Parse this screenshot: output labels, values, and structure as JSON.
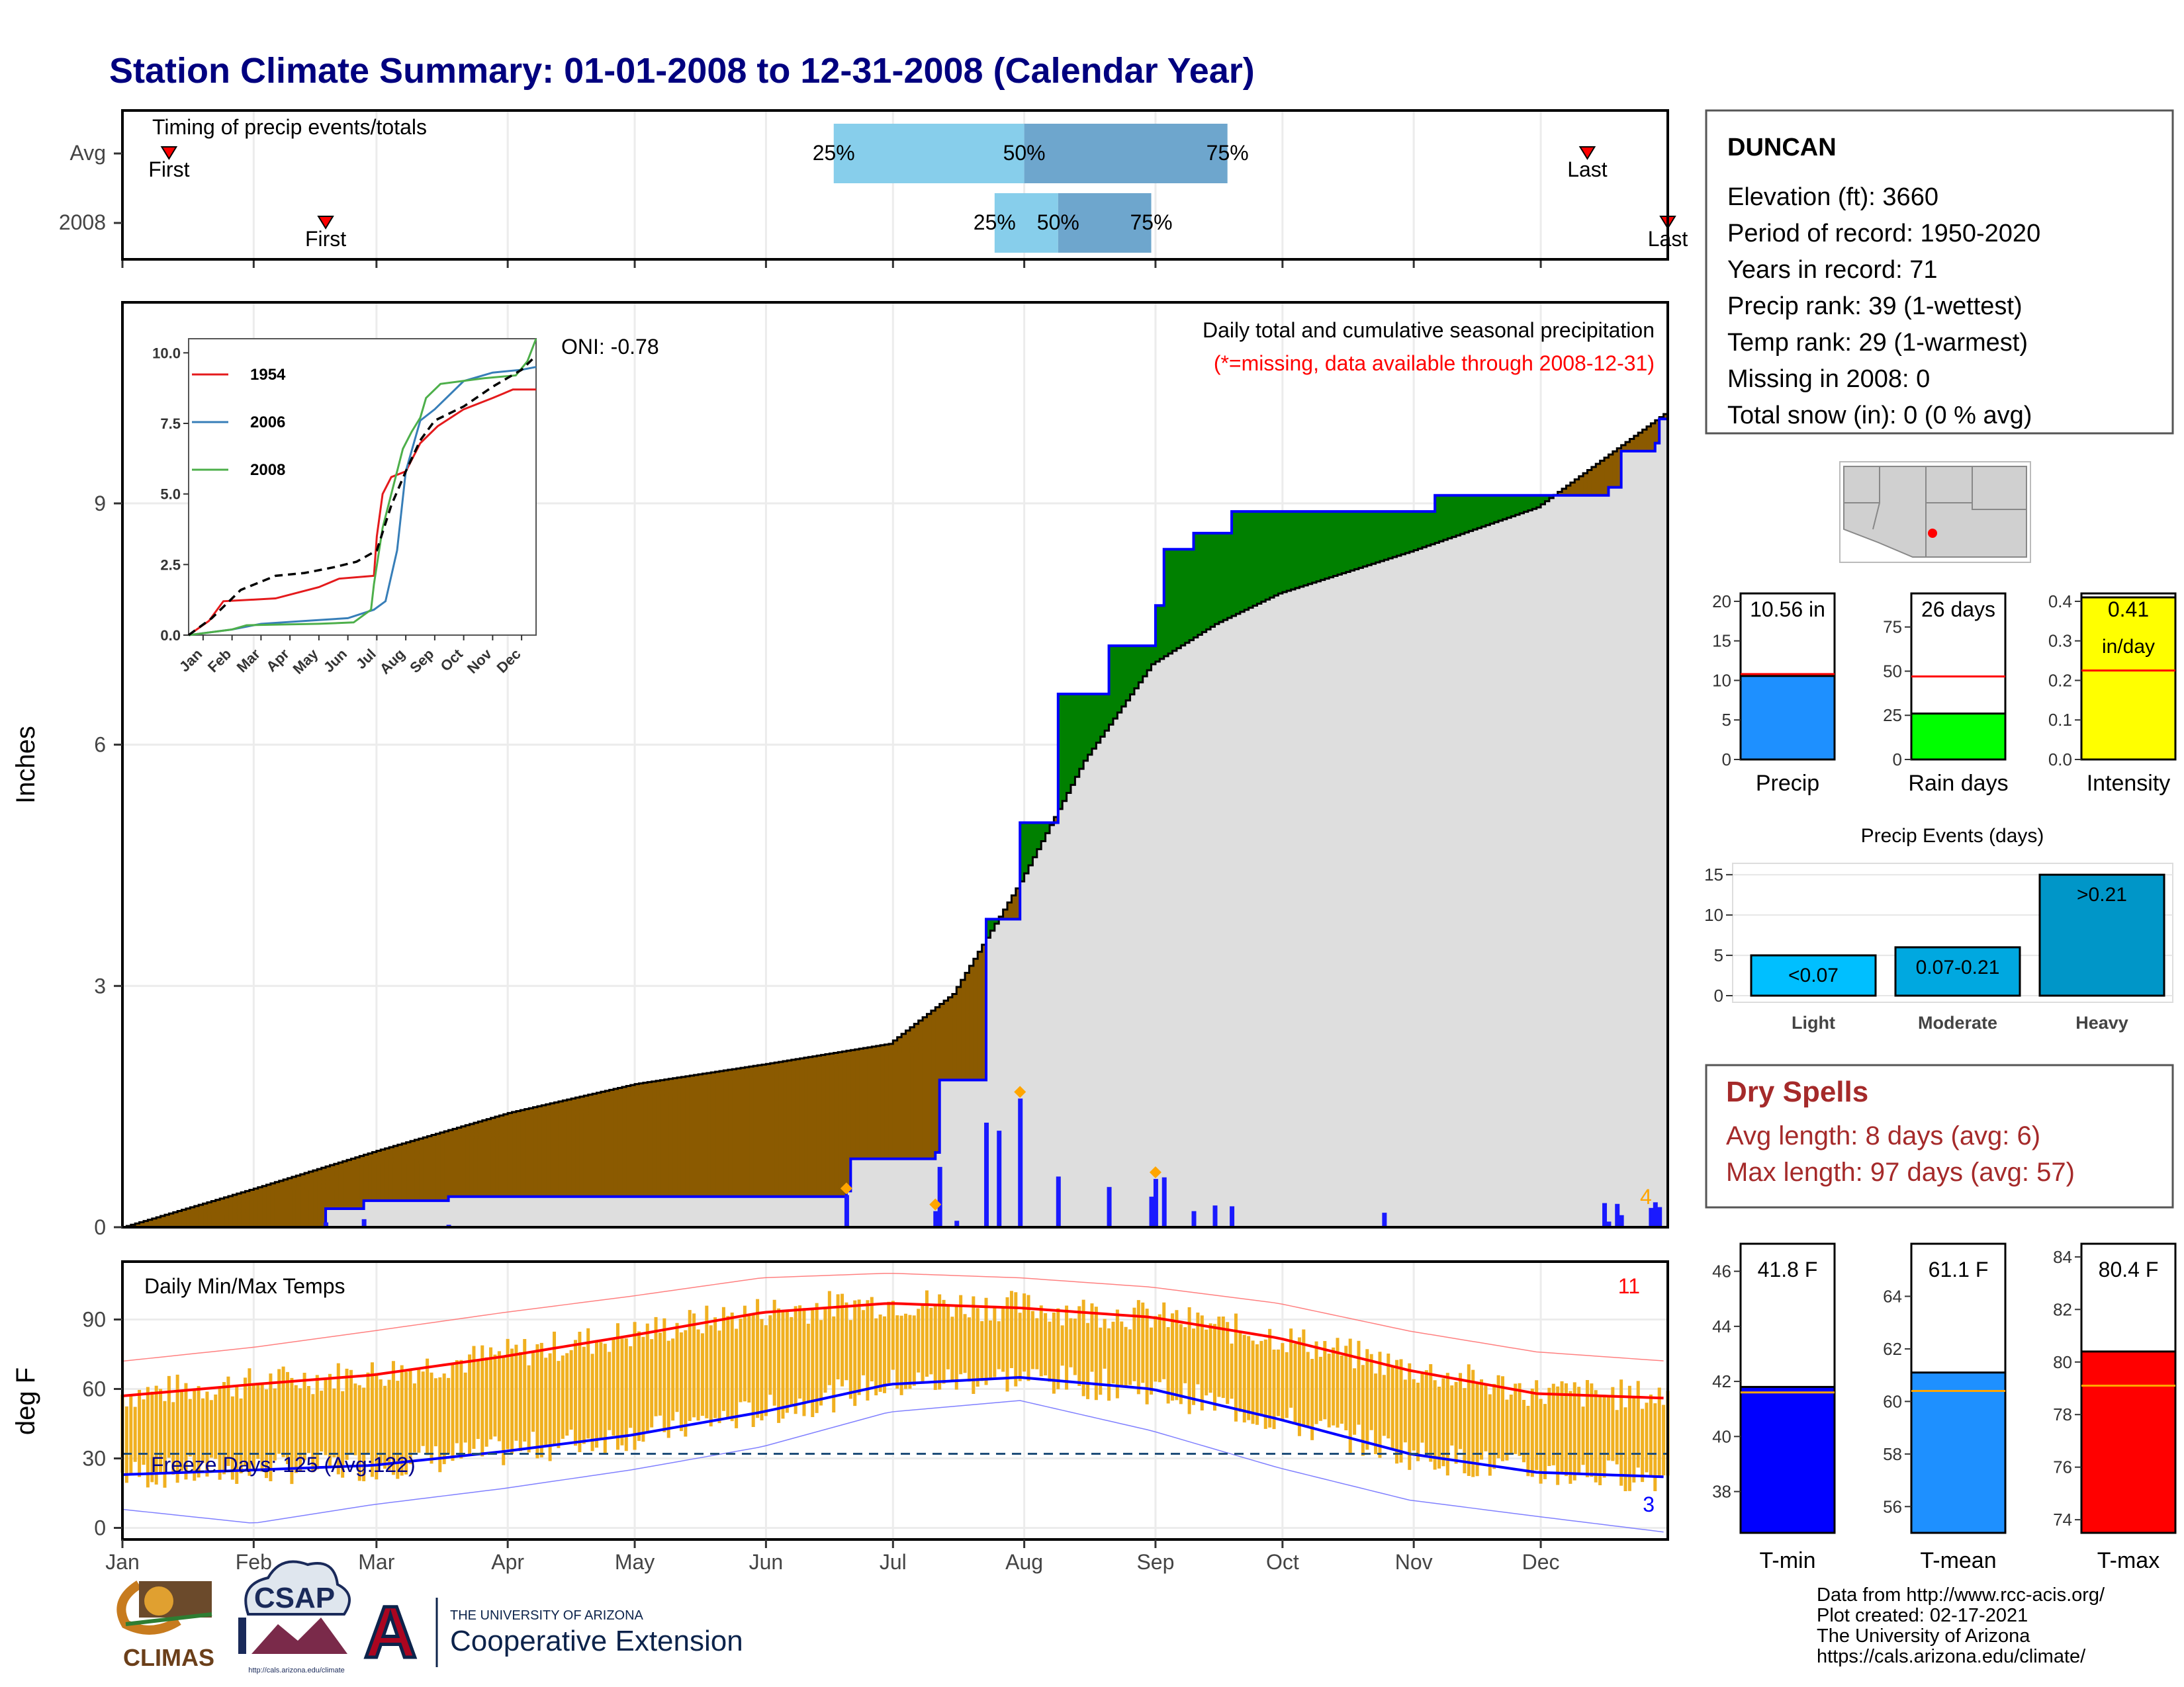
{
  "title": "Station Climate Summary: 01-01-2008 to 12-31-2008 (Calendar Year)",
  "colors": {
    "title": "#00007f",
    "brown": "#8b5a00",
    "green": "#008000",
    "blue": "#0000ff",
    "bars": "#1a1aff",
    "gray": "#dedede",
    "temp_fill": "#f0b020",
    "tmax": "#ff0000",
    "tmin": "#0000ff",
    "light_blue": "#87ceeb",
    "mid_blue": "#6ea6cd",
    "dry": "#a52a2a",
    "precip_bar": "#1e90ff",
    "rain_bar": "#00ff00",
    "intensity_bar": "#ffff00",
    "events_bar": "#0096c8"
  },
  "timing": {
    "label": "Timing of precip events/totals",
    "rows": [
      "Avg",
      "2008"
    ],
    "first_label": "First",
    "last_label": "Last",
    "q25": "25%",
    "q50": "50%",
    "q75": "75%",
    "avg": {
      "first": "01-12",
      "q25": "06-17",
      "q50": "08-01",
      "q75": "09-18",
      "last": "12-12"
    },
    "y2008": {
      "first": "02-18",
      "q25": "07-25",
      "q50": "08-09",
      "q75": "08-31",
      "last": "12-31"
    }
  },
  "precip_panel": {
    "ylabel": "Inches",
    "yticks": [
      0,
      3,
      6,
      9
    ],
    "subtitle": "Daily total and cumulative seasonal precipitation",
    "missing_note": "(*=missing, data available through 2008-12-31)",
    "missing_count": "4",
    "oni": "ONI: -0.78",
    "chart_data": {
      "type": "area",
      "ylim": [
        0,
        11.5
      ],
      "cumulative_2008": [
        [
          "01-01",
          0
        ],
        [
          "02-18",
          0.23
        ],
        [
          "02-27",
          0.33
        ],
        [
          "03-18",
          0.38
        ],
        [
          "06-20",
          0.45
        ],
        [
          "06-21",
          0.85
        ],
        [
          "07-11",
          0.93
        ],
        [
          "07-12",
          1.83
        ],
        [
          "07-22",
          1.83
        ],
        [
          "07-23",
          3.83
        ],
        [
          "07-30",
          3.83
        ],
        [
          "07-31",
          5.03
        ],
        [
          "08-08",
          5.03
        ],
        [
          "08-09",
          6.63
        ],
        [
          "08-20",
          6.63
        ],
        [
          "08-21",
          7.23
        ],
        [
          "08-31",
          7.23
        ],
        [
          "09-01",
          7.73
        ],
        [
          "09-02",
          7.73
        ],
        [
          "09-03",
          8.43
        ],
        [
          "09-09",
          8.43
        ],
        [
          "09-10",
          8.63
        ],
        [
          "09-18",
          8.63
        ],
        [
          "09-19",
          8.9
        ],
        [
          "11-05",
          8.9
        ],
        [
          "11-06",
          9.1
        ],
        [
          "12-16",
          9.1
        ],
        [
          "12-17",
          9.2
        ],
        [
          "12-19",
          9.2
        ],
        [
          "12-20",
          9.65
        ],
        [
          "12-27",
          9.65
        ],
        [
          "12-28",
          9.75
        ],
        [
          "12-29",
          10.05
        ],
        [
          "12-31",
          10.55
        ]
      ],
      "average_cumulative": [
        [
          "01-01",
          0
        ],
        [
          "02-01",
          0.48
        ],
        [
          "03-01",
          0.95
        ],
        [
          "04-01",
          1.42
        ],
        [
          "05-01",
          1.78
        ],
        [
          "06-01",
          2.03
        ],
        [
          "06-30",
          2.28
        ],
        [
          "07-15",
          2.9
        ],
        [
          "07-31",
          4.3
        ],
        [
          "08-15",
          5.8
        ],
        [
          "08-31",
          7.0
        ],
        [
          "09-15",
          7.5
        ],
        [
          "09-30",
          7.88
        ],
        [
          "10-31",
          8.4
        ],
        [
          "11-30",
          8.95
        ],
        [
          "12-31",
          10.15
        ]
      ],
      "daily_bars": [
        [
          "02-18",
          0.06
        ],
        [
          "02-27",
          0.1
        ],
        [
          "03-18",
          0.03
        ],
        [
          "06-20",
          0.4
        ],
        [
          "07-11",
          0.2
        ],
        [
          "07-12",
          0.75
        ],
        [
          "07-16",
          0.08
        ],
        [
          "07-23",
          1.3
        ],
        [
          "07-26",
          1.2
        ],
        [
          "07-31",
          1.6
        ],
        [
          "08-09",
          0.63
        ],
        [
          "08-21",
          0.5
        ],
        [
          "08-31",
          0.38
        ],
        [
          "09-01",
          0.6
        ],
        [
          "09-03",
          0.62
        ],
        [
          "09-10",
          0.2
        ],
        [
          "09-15",
          0.27
        ],
        [
          "09-19",
          0.26
        ],
        [
          "10-25",
          0.18
        ],
        [
          "12-16",
          0.3
        ],
        [
          "12-17",
          0.07
        ],
        [
          "12-19",
          0.29
        ],
        [
          "12-20",
          0.15
        ],
        [
          "12-27",
          0.24
        ],
        [
          "12-28",
          0.31
        ],
        [
          "12-29",
          0.25
        ]
      ],
      "max_markers": [
        "06-20",
        "07-11",
        "07-31",
        "09-01"
      ]
    }
  },
  "inset": {
    "yticks": [
      "0.0",
      "2.5",
      "5.0",
      "7.5",
      "10.0"
    ],
    "months": [
      "Jan",
      "Feb",
      "Mar",
      "Apr",
      "May",
      "Jun",
      "Jul",
      "Aug",
      "Sep",
      "Oct",
      "Nov",
      "Dec"
    ],
    "chart_data": {
      "type": "line",
      "ylim": [
        0,
        10.5
      ],
      "series": [
        {
          "name": "1954",
          "color": "#e41a1c",
          "points": [
            [
              0,
              0
            ],
            [
              0.7,
              0.5
            ],
            [
              1.2,
              1.2
            ],
            [
              3,
              1.3
            ],
            [
              4.5,
              1.7
            ],
            [
              5.2,
              2.0
            ],
            [
              6.4,
              2.1
            ],
            [
              6.5,
              3.5
            ],
            [
              6.7,
              5.0
            ],
            [
              7.0,
              5.6
            ],
            [
              7.5,
              5.8
            ],
            [
              8.0,
              6.8
            ],
            [
              8.6,
              7.4
            ],
            [
              9.5,
              8.0
            ],
            [
              10.5,
              8.4
            ],
            [
              11.2,
              8.7
            ],
            [
              12,
              8.7
            ]
          ]
        },
        {
          "name": "2006",
          "color": "#377eb8",
          "points": [
            [
              0,
              0
            ],
            [
              1.5,
              0.2
            ],
            [
              2.5,
              0.4
            ],
            [
              4,
              0.5
            ],
            [
              5.5,
              0.6
            ],
            [
              6.4,
              0.9
            ],
            [
              6.8,
              1.2
            ],
            [
              7.2,
              3.0
            ],
            [
              7.5,
              5.8
            ],
            [
              8.0,
              7.6
            ],
            [
              8.5,
              8.0
            ],
            [
              9.5,
              9.0
            ],
            [
              10.5,
              9.3
            ],
            [
              11.5,
              9.4
            ],
            [
              12,
              9.5
            ]
          ]
        },
        {
          "name": "2008",
          "color": "#4daf4a",
          "points": [
            [
              0,
              0
            ],
            [
              1.5,
              0.2
            ],
            [
              2.0,
              0.35
            ],
            [
              4.5,
              0.4
            ],
            [
              5.7,
              0.45
            ],
            [
              6.3,
              0.9
            ],
            [
              6.4,
              1.8
            ],
            [
              6.7,
              3.8
            ],
            [
              7.0,
              5.0
            ],
            [
              7.4,
              6.6
            ],
            [
              7.7,
              7.2
            ],
            [
              8.0,
              7.7
            ],
            [
              8.2,
              8.4
            ],
            [
              8.7,
              8.9
            ],
            [
              10.2,
              9.1
            ],
            [
              11.3,
              9.2
            ],
            [
              11.7,
              9.7
            ],
            [
              12,
              10.5
            ]
          ]
        },
        {
          "points": [
            [
              0,
              0
            ],
            [
              0.8,
              0.6
            ],
            [
              1.8,
              1.6
            ],
            [
              3,
              2.1
            ],
            [
              4,
              2.2
            ],
            [
              5,
              2.4
            ],
            [
              5.8,
              2.6
            ],
            [
              6.5,
              3.0
            ],
            [
              7.0,
              4.6
            ],
            [
              7.5,
              5.8
            ],
            [
              8.0,
              6.9
            ],
            [
              8.5,
              7.6
            ],
            [
              9.5,
              8.1
            ],
            [
              10.5,
              8.8
            ],
            [
              11.5,
              9.4
            ],
            [
              12,
              9.9
            ]
          ],
          "dashed": true
        }
      ]
    }
  },
  "station": {
    "name": "DUNCAN",
    "lines": [
      "Elevation (ft): 3660",
      "Period of record: 1950-2020",
      "Years in record: 71",
      "Precip rank: 39 (1-wettest)",
      "Temp rank: 29 (1-warmest)",
      "Missing in 2008: 0",
      "Total snow (in): 0 (0 % avg)"
    ]
  },
  "small_bars": [
    {
      "label": "10.56 in",
      "xlabel": "Precip",
      "value": 10.56,
      "avg": 10.8,
      "ymax": 21,
      "ticks": [
        0,
        5,
        10,
        15,
        20
      ]
    },
    {
      "label": "26 days",
      "xlabel": "Rain days",
      "value": 26,
      "avg": 47,
      "ymax": 94,
      "ticks": [
        0,
        25,
        50,
        75
      ]
    },
    {
      "label": "0.41",
      "label2": "in/day",
      "xlabel": "Intensity",
      "value": 0.41,
      "avg": 0.225,
      "ymax": 0.42,
      "ticks": [
        "0.0",
        "0.1",
        "0.2",
        "0.3",
        "0.4"
      ]
    }
  ],
  "events": {
    "title": "Precip Events (days)",
    "ticks": [
      0,
      5,
      10,
      15
    ],
    "ymax": 16,
    "categories": [
      "Light",
      "Moderate",
      "Heavy"
    ],
    "bar_labels": [
      "<0.07",
      "0.07-0.21",
      ">0.21"
    ],
    "values": [
      5,
      6,
      15
    ]
  },
  "dry_spells": {
    "title": "Dry Spells",
    "avg": "Avg length: 8 days (avg: 6)",
    "max": "Max length: 97 days (avg: 57)"
  },
  "temp_panel": {
    "ylabel": "deg F",
    "title": "Daily Min/Max Temps",
    "freeze": "Freeze Days: 125 (Avg:122)",
    "max_count": "11",
    "min_count": "3",
    "yticks": [
      0,
      30,
      60,
      90
    ],
    "months": [
      "Jan",
      "Feb",
      "Mar",
      "Apr",
      "May",
      "Jun",
      "Jul",
      "Aug",
      "Sep",
      "Oct",
      "Nov",
      "Dec"
    ],
    "chart_data": {
      "type": "line",
      "ylim": [
        -5,
        115
      ],
      "avg_max": [
        [
          1,
          57
        ],
        [
          32,
          62
        ],
        [
          60,
          66
        ],
        [
          91,
          74
        ],
        [
          121,
          83
        ],
        [
          152,
          93
        ],
        [
          182,
          97
        ],
        [
          213,
          95
        ],
        [
          244,
          91
        ],
        [
          274,
          82
        ],
        [
          305,
          68
        ],
        [
          335,
          58
        ],
        [
          366,
          56
        ]
      ],
      "avg_min": [
        [
          1,
          23
        ],
        [
          32,
          25
        ],
        [
          60,
          27
        ],
        [
          91,
          33
        ],
        [
          121,
          40
        ],
        [
          152,
          50
        ],
        [
          182,
          62
        ],
        [
          213,
          65
        ],
        [
          244,
          60
        ],
        [
          274,
          47
        ],
        [
          305,
          32
        ],
        [
          335,
          24
        ],
        [
          366,
          22
        ]
      ],
      "record_max": [
        [
          1,
          72
        ],
        [
          32,
          78
        ],
        [
          60,
          85
        ],
        [
          91,
          93
        ],
        [
          121,
          100
        ],
        [
          152,
          108
        ],
        [
          182,
          110
        ],
        [
          213,
          108
        ],
        [
          244,
          104
        ],
        [
          274,
          97
        ],
        [
          305,
          85
        ],
        [
          335,
          76
        ],
        [
          366,
          72
        ]
      ],
      "record_min": [
        [
          1,
          8
        ],
        [
          32,
          2
        ],
        [
          60,
          10
        ],
        [
          91,
          17
        ],
        [
          121,
          25
        ],
        [
          152,
          35
        ],
        [
          182,
          50
        ],
        [
          213,
          55
        ],
        [
          244,
          42
        ],
        [
          274,
          26
        ],
        [
          305,
          12
        ],
        [
          335,
          5
        ],
        [
          366,
          -2
        ]
      ],
      "freezing": 32
    }
  },
  "temp_bars": [
    {
      "label": "41.8 F",
      "xlabel": "T-min",
      "value": 41.8,
      "avg": 41.6,
      "ylim": [
        36.5,
        47
      ],
      "ticks": [
        38,
        40,
        42,
        44,
        46
      ],
      "color": "#0000ff"
    },
    {
      "label": "61.1 F",
      "xlabel": "T-mean",
      "value": 61.1,
      "avg": 60.4,
      "ylim": [
        55,
        66
      ],
      "ticks": [
        56,
        58,
        60,
        62,
        64
      ],
      "color": "#1e90ff"
    },
    {
      "label": "80.4 F",
      "xlabel": "T-max",
      "value": 80.4,
      "avg": 79.1,
      "ylim": [
        73.5,
        84.5
      ],
      "ticks": [
        74,
        76,
        78,
        80,
        82,
        84
      ],
      "color": "#ff0000"
    }
  ],
  "footer": {
    "lines": [
      "Data from http://www.rcc-acis.org/",
      "Plot created: 02-17-2021",
      "The University of Arizona",
      "https://cals.arizona.edu/climate/"
    ],
    "climas": "CLIMAS",
    "csap": "CSAP",
    "csap_url": "http://cals.arizona.edu/climate",
    "ua_small": "THE UNIVERSITY OF ARIZONA",
    "ua_big": "Cooperative Extension",
    "ua_letter": "A"
  },
  "months": [
    "Jan",
    "Feb",
    "Mar",
    "Apr",
    "May",
    "Jun",
    "Jul",
    "Aug",
    "Sep",
    "Oct",
    "Nov",
    "Dec"
  ]
}
